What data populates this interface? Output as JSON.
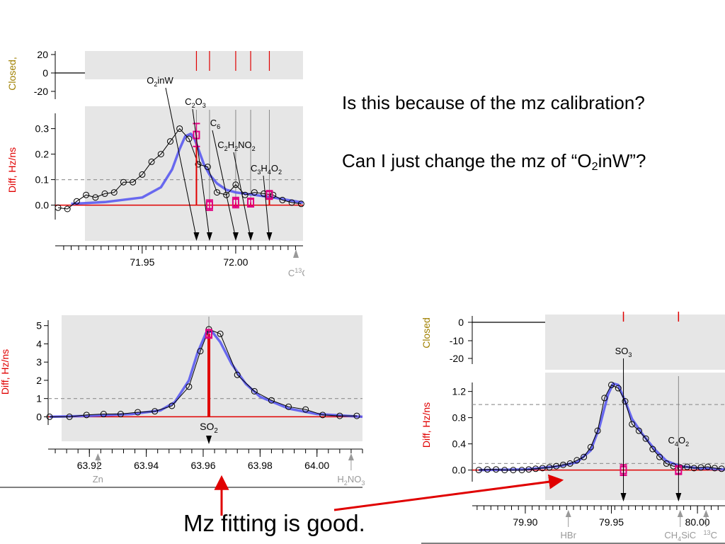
{
  "slide": {
    "question1": "Is this because of the mz calibration?",
    "question2_prefix": "Can I just change the mz of “O",
    "question2_sub": "2",
    "question2_suffix": "inW”?",
    "caption": "Mz fitting is good."
  },
  "colors": {
    "panel_bg": "#e6e6e6",
    "observed": "#000000",
    "fit": "#5a5af0",
    "baseline": "#e00000",
    "peak_marker": "#e00080",
    "ylabel_diff": "#e00000",
    "ylabel_closed": "#a08000",
    "ref_line": "#999999",
    "annotation_arrow": "#e00000"
  },
  "chart_data": [
    {
      "type": "line",
      "id": "mz72",
      "ylabel": "Diff, Hz/ns",
      "closed_label": "Closed,",
      "closed_ticks": [
        "20",
        "0",
        "-20"
      ],
      "yticks": [
        0.0,
        0.1,
        0.2,
        0.3
      ],
      "ytick_labels": [
        "0.0",
        "0.1",
        "0.2",
        "0.3"
      ],
      "ylim": [
        -0.09,
        0.36
      ],
      "xlim": [
        71.905,
        72.036
      ],
      "xticks": [
        71.95,
        72.0
      ],
      "xtick_labels": [
        "71.95",
        "72.00"
      ],
      "ref_line_y": 0.1,
      "grey_start_x": 71.917,
      "observed_x": [
        71.905,
        71.91,
        71.915,
        71.92,
        71.925,
        71.93,
        71.935,
        71.94,
        71.945,
        71.95,
        71.955,
        71.96,
        71.965,
        71.97,
        71.975,
        71.98,
        71.985,
        71.99,
        71.995,
        72.0,
        72.005,
        72.01,
        72.015,
        72.02,
        72.025,
        72.03,
        72.035
      ],
      "observed_y": [
        -0.01,
        -0.015,
        0.015,
        0.04,
        0.03,
        0.045,
        0.05,
        0.09,
        0.09,
        0.12,
        0.17,
        0.2,
        0.25,
        0.3,
        0.26,
        0.16,
        0.15,
        0.05,
        0.04,
        0.08,
        0.04,
        0.05,
        0.045,
        0.04,
        0.02,
        0.01,
        0.005
      ],
      "fit_x": [
        71.912,
        71.93,
        71.95,
        71.96,
        71.966,
        71.97,
        71.973,
        71.976,
        71.978,
        71.98,
        71.983,
        71.986,
        71.99,
        71.995,
        72.0,
        72.01,
        72.02,
        72.036
      ],
      "fit_y": [
        0.005,
        0.012,
        0.03,
        0.07,
        0.14,
        0.22,
        0.27,
        0.28,
        0.26,
        0.22,
        0.16,
        0.12,
        0.085,
        0.06,
        0.05,
        0.04,
        0.03,
        0.01
      ],
      "peaks": [
        {
          "x": 71.979,
          "h": 0.275,
          "err": 0.045
        },
        {
          "x": 71.986,
          "h": 0.0,
          "err": 0.02
        },
        {
          "x": 72.0,
          "h": 0.01,
          "err": 0.02
        },
        {
          "x": 72.008,
          "h": 0.01,
          "err": 0.015
        },
        {
          "x": 72.018,
          "h": 0.04,
          "err": 0.01
        }
      ],
      "closed_marks_x": [
        71.979,
        71.986,
        72.0,
        72.008,
        72.018
      ],
      "labels": [
        {
          "pre": "O",
          "sub": "2",
          "post": "inW",
          "tip_x": 71.979
        },
        {
          "pre": "C",
          "sub": "2",
          "post": "O",
          "sub2": "3",
          "tip_x": 71.986
        },
        {
          "pre": "C",
          "sub": "6",
          "post": "",
          "tip_x": 72.0
        },
        {
          "pre": "C",
          "sub": "2",
          "post": "H",
          "sub2": "2",
          "post2": "NO",
          "sub3": "2",
          "tip_x": 72.008
        },
        {
          "pre": "C",
          "sub": "3",
          "post": "H",
          "sub2": "4",
          "post2": "O",
          "sub3": "2",
          "tip_x": 72.018
        }
      ],
      "iso_marker": {
        "x": 72.036,
        "text": "C",
        "sup": "13",
        "post": "CC"
      }
    },
    {
      "type": "line",
      "id": "mz64",
      "ylabel": "Diff, Hz/ns",
      "yticks": [
        0,
        1,
        2,
        3,
        4,
        5
      ],
      "ytick_labels": [
        "0",
        "1",
        "2",
        "3",
        "4",
        "5"
      ],
      "ylim": [
        -1.5,
        5.3
      ],
      "xlim": [
        63.906,
        64.016
      ],
      "xticks": [
        63.92,
        63.94,
        63.96,
        63.98,
        64.0
      ],
      "xtick_labels": [
        "63.92",
        "63.94",
        "63.96",
        "63.98",
        "64.00"
      ],
      "ref_line_y": 1.0,
      "grey_start_x": 63.913,
      "observed_x": [
        63.906,
        63.913,
        63.919,
        63.925,
        63.931,
        63.937,
        63.943,
        63.949,
        63.955,
        63.959,
        63.962,
        63.966,
        63.972,
        63.978,
        63.984,
        63.99,
        63.996,
        64.002,
        64.008,
        64.014
      ],
      "observed_y": [
        0.0,
        0.0,
        0.1,
        0.15,
        0.15,
        0.25,
        0.3,
        0.6,
        1.65,
        3.6,
        4.8,
        4.55,
        2.3,
        1.4,
        0.9,
        0.55,
        0.4,
        0.1,
        0.05,
        0.05
      ],
      "fit_x": [
        63.906,
        63.92,
        63.935,
        63.945,
        63.95,
        63.955,
        63.958,
        63.961,
        63.963,
        63.966,
        63.97,
        63.975,
        63.98,
        63.99,
        64.0,
        64.016
      ],
      "fit_y": [
        0.0,
        0.05,
        0.15,
        0.35,
        0.8,
        2.0,
        3.5,
        4.6,
        4.7,
        4.1,
        2.9,
        1.8,
        1.1,
        0.45,
        0.15,
        0.0
      ],
      "peaks": [
        {
          "x": 63.962,
          "h": 4.55,
          "err": 0.1
        }
      ],
      "labels": [
        {
          "pre": "SO",
          "sub": "2",
          "post": "",
          "tip_x": 63.962
        }
      ],
      "below_markers": [
        {
          "x": 63.923,
          "text": "Zn"
        },
        {
          "x": 64.012,
          "text": "H",
          "sub": "2",
          "post": "NO",
          "sub2": "3"
        }
      ]
    },
    {
      "type": "line",
      "id": "mz80",
      "ylabel": "Diff, Hz/ns",
      "closed_label": "Closed",
      "closed_ticks": [
        "0",
        "-10",
        "-20"
      ],
      "yticks": [
        0.0,
        0.4,
        0.8,
        1.2
      ],
      "ytick_labels": [
        "0.0",
        "0.4",
        "0.8",
        "1.2"
      ],
      "ylim": [
        -0.35,
        1.38
      ],
      "xlim": [
        79.87,
        80.016
      ],
      "xticks": [
        79.9,
        79.95,
        80.0
      ],
      "xtick_labels": [
        "79.90",
        "79.95",
        "80.00"
      ],
      "ref_line_y": 1.0,
      "ref_line2_y": 0.1,
      "grey_start_x": 79.897,
      "observed_x": [
        79.873,
        79.878,
        79.883,
        79.888,
        79.893,
        79.898,
        79.902,
        79.906,
        79.91,
        79.914,
        79.918,
        79.922,
        79.926,
        79.93,
        79.934,
        79.938,
        79.942,
        79.946,
        79.95,
        79.954,
        79.958,
        79.962,
        79.966,
        79.97,
        79.974,
        79.978,
        79.982,
        79.986,
        79.99,
        79.994,
        79.998,
        80.002,
        80.006,
        80.01,
        80.014
      ],
      "observed_y": [
        0.0,
        0.01,
        0.01,
        0.0,
        0.0,
        0.0,
        0.01,
        0.02,
        0.03,
        0.04,
        0.06,
        0.08,
        0.1,
        0.15,
        0.2,
        0.35,
        0.6,
        1.1,
        1.3,
        1.25,
        1.05,
        0.7,
        0.6,
        0.48,
        0.32,
        0.2,
        0.1,
        0.06,
        0.04,
        0.05,
        0.03,
        0.04,
        0.05,
        0.03,
        0.02
      ],
      "fit_x": [
        79.873,
        79.9,
        79.92,
        79.93,
        79.938,
        79.943,
        79.948,
        79.951,
        79.954,
        79.958,
        79.962,
        79.968,
        79.975,
        79.982,
        79.99,
        80.0,
        80.016
      ],
      "fit_y": [
        0.0,
        0.01,
        0.06,
        0.12,
        0.3,
        0.65,
        1.15,
        1.32,
        1.3,
        1.05,
        0.78,
        0.55,
        0.32,
        0.14,
        0.06,
        0.03,
        0.01
      ],
      "peaks": [
        {
          "x": 79.957,
          "h": 0.0,
          "err": 0.08
        },
        {
          "x": 79.989,
          "h": 0.0,
          "err": 0.04
        }
      ],
      "closed_marks_x": [
        79.957,
        79.989
      ],
      "labels": [
        {
          "pre": "SO",
          "sub": "3",
          "post": "",
          "tip_x": 79.957
        },
        {
          "pre": "C",
          "sub": "4",
          "post": "O",
          "sub2": "2",
          "tip_x": 79.989
        }
      ],
      "below_markers": [
        {
          "x": 79.925,
          "text": "HBr"
        },
        {
          "x": 79.99,
          "text": "CH",
          "sub": "4",
          "post": "SiC"
        },
        {
          "x": 80.005,
          "text": "",
          "sup": "13",
          "post": "C"
        }
      ]
    }
  ]
}
